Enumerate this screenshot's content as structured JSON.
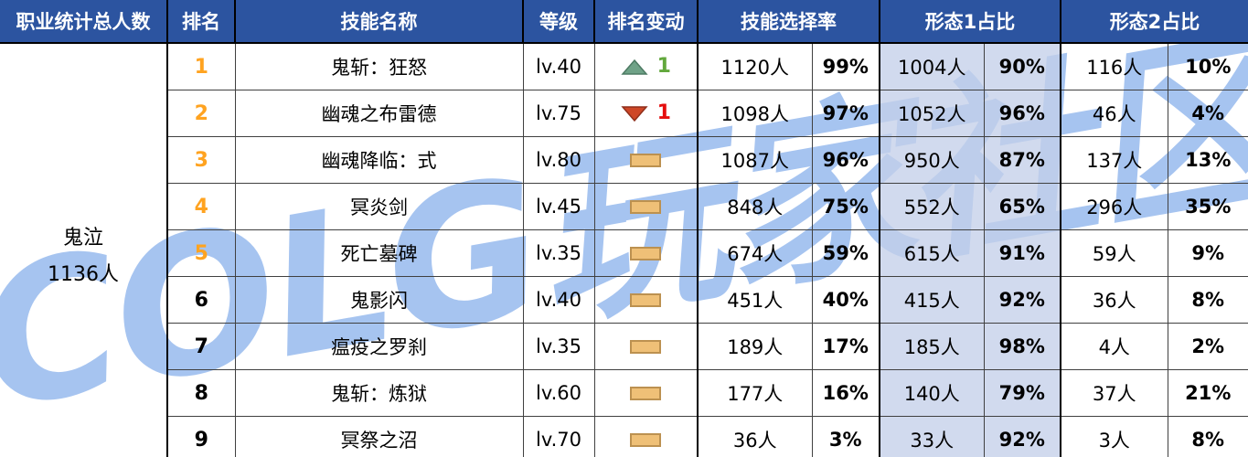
{
  "chart_data": {
    "type": "table",
    "header": {
      "class_total": "职业统计总人数",
      "rank": "排名",
      "skill_name": "技能名称",
      "level": "等级",
      "rank_change": "排名变动",
      "selection_rate": "技能选择率",
      "form1_ratio": "形态1占比",
      "form2_ratio": "形态2占比"
    },
    "class_cell": {
      "name": "鬼泣",
      "total": "1136人"
    },
    "rows": [
      {
        "rank": "1",
        "rank_highlight": true,
        "skill": "鬼斩：狂怒",
        "level": "lv.40",
        "change_dir": "up",
        "change_value": "1",
        "selection_count": "1120人",
        "selection_pct": "99%",
        "form1_count": "1004人",
        "form1_pct": "90%",
        "form2_count": "116人",
        "form2_pct": "10%"
      },
      {
        "rank": "2",
        "rank_highlight": true,
        "skill": "幽魂之布雷德",
        "level": "lv.75",
        "change_dir": "down",
        "change_value": "1",
        "selection_count": "1098人",
        "selection_pct": "97%",
        "form1_count": "1052人",
        "form1_pct": "96%",
        "form2_count": "46人",
        "form2_pct": "4%"
      },
      {
        "rank": "3",
        "rank_highlight": true,
        "skill": "幽魂降临：式",
        "level": "lv.80",
        "change_dir": "same",
        "change_value": "",
        "selection_count": "1087人",
        "selection_pct": "96%",
        "form1_count": "950人",
        "form1_pct": "87%",
        "form2_count": "137人",
        "form2_pct": "13%"
      },
      {
        "rank": "4",
        "rank_highlight": true,
        "skill": "冥炎剑",
        "level": "lv.45",
        "change_dir": "same",
        "change_value": "",
        "selection_count": "848人",
        "selection_pct": "75%",
        "form1_count": "552人",
        "form1_pct": "65%",
        "form2_count": "296人",
        "form2_pct": "35%"
      },
      {
        "rank": "5",
        "rank_highlight": true,
        "skill": "死亡墓碑",
        "level": "lv.35",
        "change_dir": "same",
        "change_value": "",
        "selection_count": "674人",
        "selection_pct": "59%",
        "form1_count": "615人",
        "form1_pct": "91%",
        "form2_count": "59人",
        "form2_pct": "9%"
      },
      {
        "rank": "6",
        "rank_highlight": false,
        "skill": "鬼影闪",
        "level": "lv.40",
        "change_dir": "same",
        "change_value": "",
        "selection_count": "451人",
        "selection_pct": "40%",
        "form1_count": "415人",
        "form1_pct": "92%",
        "form2_count": "36人",
        "form2_pct": "8%"
      },
      {
        "rank": "7",
        "rank_highlight": false,
        "skill": "瘟疫之罗刹",
        "level": "lv.35",
        "change_dir": "same",
        "change_value": "",
        "selection_count": "189人",
        "selection_pct": "17%",
        "form1_count": "185人",
        "form1_pct": "98%",
        "form2_count": "4人",
        "form2_pct": "2%"
      },
      {
        "rank": "8",
        "rank_highlight": false,
        "skill": "鬼斩：炼狱",
        "level": "lv.60",
        "change_dir": "same",
        "change_value": "",
        "selection_count": "177人",
        "selection_pct": "16%",
        "form1_count": "140人",
        "form1_pct": "79%",
        "form2_count": "37人",
        "form2_pct": "21%"
      },
      {
        "rank": "9",
        "rank_highlight": false,
        "skill": "冥祭之沼",
        "level": "lv.70",
        "change_dir": "same",
        "change_value": "",
        "selection_count": "36人",
        "selection_pct": "3%",
        "form1_count": "33人",
        "form1_pct": "92%",
        "form2_count": "3人",
        "form2_pct": "8%"
      }
    ]
  },
  "watermark": {
    "text": "COLG玩家社区"
  },
  "colors": {
    "header_bg": "#2C54A0",
    "header_text": "#FFFFFF",
    "rank_highlight": "#FFA320",
    "form_col_bg": "rgba(196,207,233,0.78)",
    "up_triangle": "#6FA287",
    "up_triangle_stroke": "#4D7A63",
    "up_text": "#62A83C",
    "down_triangle": "#CE4727",
    "down_triangle_stroke": "#8F2F1B",
    "down_text": "#E50E0E",
    "dash_fill": "#EFC077",
    "dash_border": "#BC9150",
    "watermark_color": "#A6C4F0"
  }
}
